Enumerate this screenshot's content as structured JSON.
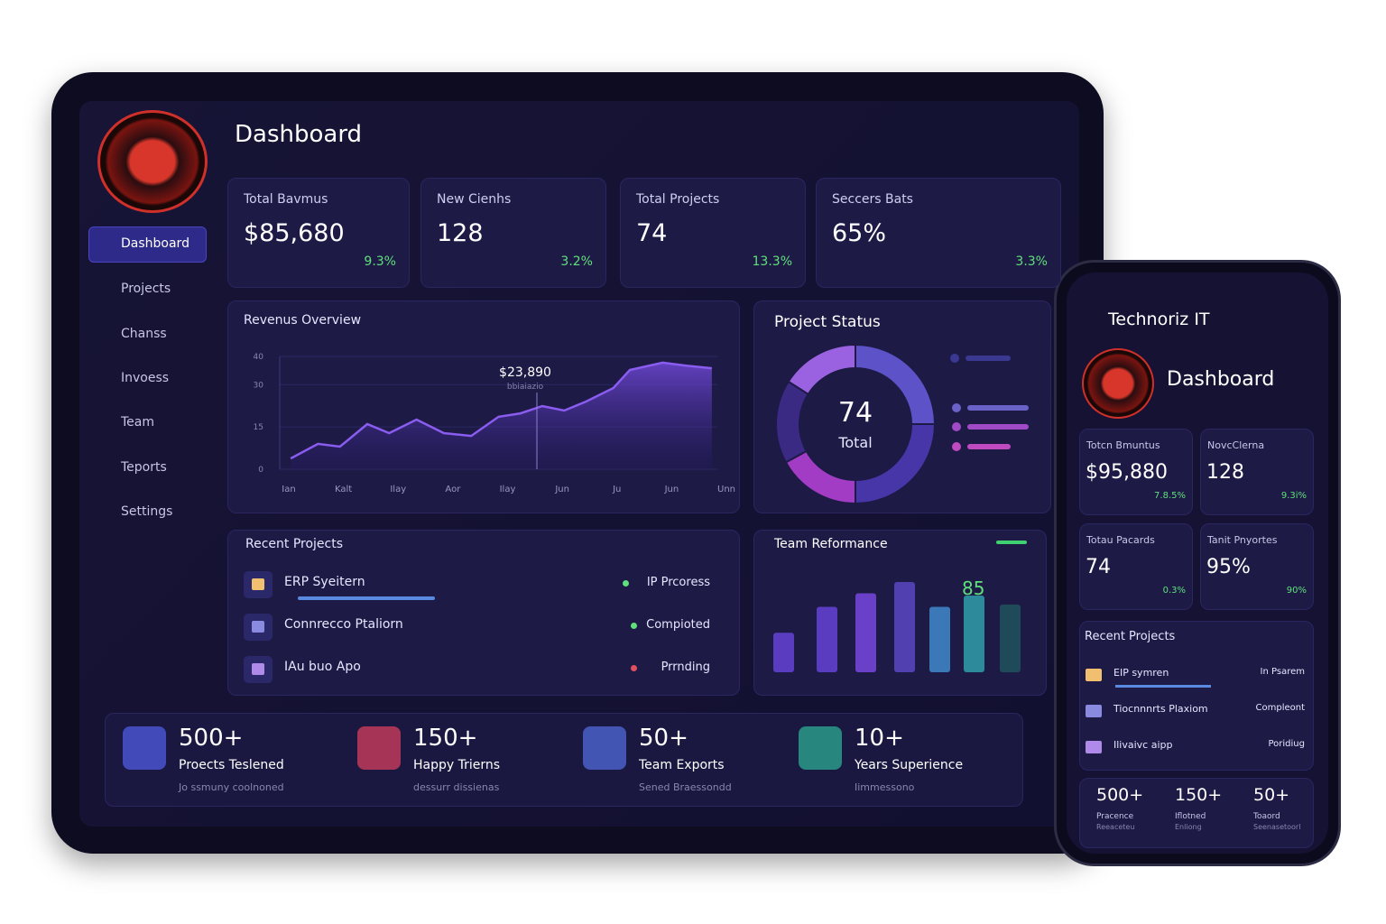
{
  "tablet": {
    "title": "Dashboard",
    "nav": [
      "Dashboard",
      "Projects",
      "Chanss",
      "Invoess",
      "Team",
      "Teports",
      "Settings"
    ],
    "stats": [
      {
        "label": "Total Bavmus",
        "value": "$85,680",
        "change": "9.3%"
      },
      {
        "label": "New Cienhs",
        "value": "128",
        "change": "3.2%"
      },
      {
        "label": "Total Projects",
        "value": "74",
        "change": "13.3%"
      },
      {
        "label": "Seccers Bats",
        "value": "65%",
        "change": "3.3%"
      }
    ],
    "revenue_chart": {
      "type": "line",
      "title": "Revenus Overview",
      "tooltip": "$23,890",
      "tooltip_sub": "bbiaiazio",
      "x": [
        0.2,
        0.7,
        1.1,
        1.6,
        2.0,
        2.5,
        3.0,
        3.5,
        4.0,
        4.4,
        4.8,
        5.2,
        5.6,
        6.1,
        6.4,
        7.0,
        7.4,
        7.9
      ],
      "values": [
        3.8,
        9.0,
        8.0,
        16,
        12.8,
        17.6,
        12.8,
        11.8,
        18.6,
        19.8,
        22.4,
        20.8,
        24,
        28.8,
        35.2,
        37.8,
        36.8,
        35.8
      ],
      "xlim": [
        0,
        8
      ],
      "xticks": [
        {
          "value": 0,
          "label": "Ian"
        },
        {
          "value": 1,
          "label": "Kalt"
        },
        {
          "value": 2,
          "label": "Ilay"
        },
        {
          "value": 3,
          "label": "Aor"
        },
        {
          "value": 4,
          "label": "Ilay"
        },
        {
          "value": 5,
          "label": "Jun"
        },
        {
          "value": 6,
          "label": "Ju"
        },
        {
          "value": 7,
          "label": "Jun"
        },
        {
          "value": 8,
          "label": "Unn"
        }
      ],
      "ylim": [
        0,
        40
      ],
      "yticks": [
        40,
        30,
        15,
        0
      ],
      "color": "#8a5cf0"
    },
    "status_chart": {
      "type": "pie",
      "title": "Project Status",
      "center_value": "74",
      "center_label": "Total",
      "values": [
        25,
        25,
        17,
        17,
        16
      ],
      "colors": [
        "#5d52c8",
        "#4636a8",
        "#a23cc4",
        "#3a2a84",
        "#9a62e0"
      ]
    },
    "recent": {
      "title": "Recent Projects",
      "items": [
        {
          "name": "ERP Syeitern",
          "status": "IP Prcoress"
        },
        {
          "name": "Connrecco Ptaliorn",
          "status": "Compioted"
        },
        {
          "name": "IAu buo Apo",
          "status": "Prrnding"
        }
      ]
    },
    "team_chart": {
      "type": "bar",
      "title": "Team Reformance",
      "score": "85",
      "values": [
        35,
        58,
        70,
        80,
        58,
        68,
        60
      ],
      "ylim": [
        0,
        100
      ],
      "colors": [
        "#5a3cc0",
        "#5a3cc0",
        "#6a40c8",
        "#5040b0",
        "#3a78b8",
        "#2d8a9a",
        "#1f4a5a"
      ]
    },
    "highlights": [
      {
        "number": "500+",
        "label": "Proects Teslened",
        "sub": "Jo ssmuny coolnoned"
      },
      {
        "number": "150+",
        "label": "Happy Trierns",
        "sub": "dessurr dissienas"
      },
      {
        "number": "50+",
        "label": "Team Exports",
        "sub": "Sened Braessondd"
      },
      {
        "number": "10+",
        "label": "Years Superience",
        "sub": "Iimmessono"
      }
    ]
  },
  "phone": {
    "brand": "Technoriz IT",
    "title": "Dashboard",
    "stats": [
      {
        "label": "Totcn Bmuntus",
        "value": "$95,880",
        "change": "7.8.5%"
      },
      {
        "label": "NovcClerna",
        "value": "128",
        "change": "9.3i%"
      },
      {
        "label": "Totau Pacards",
        "value": "74",
        "change": "0.3%"
      },
      {
        "label": "Tanit Pnyortes",
        "value": "95%",
        "change": "90%"
      }
    ],
    "recent": {
      "title": "Recent Projects",
      "items": [
        {
          "name": "EIP symren",
          "status": "In Psarem"
        },
        {
          "name": "Tiocnnnrts Plaxiom",
          "status": "Compleont"
        },
        {
          "name": "Ilivaivc aipp",
          "status": "Poridiug"
        }
      ]
    },
    "highlights": [
      {
        "number": "500+",
        "label": "Pracence",
        "sub": "Reeaceteu"
      },
      {
        "number": "150+",
        "label": "Iflotned",
        "sub": "Enliong"
      },
      {
        "number": "50+",
        "label": "Toaord",
        "sub": "Seenasetoorl"
      }
    ]
  }
}
